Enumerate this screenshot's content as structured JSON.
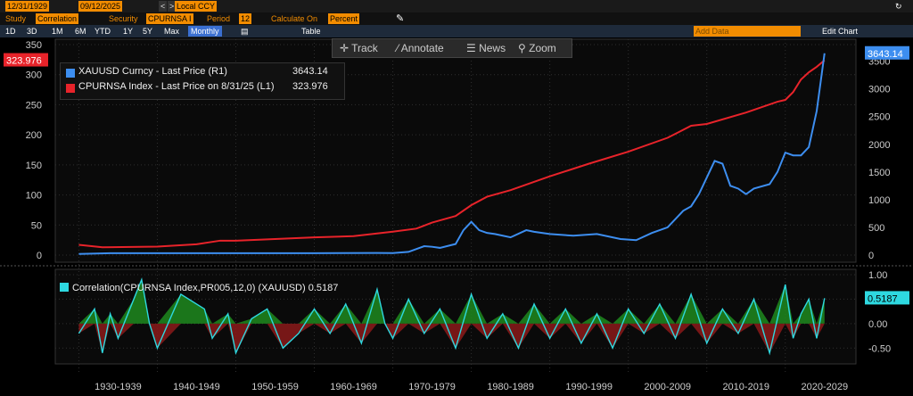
{
  "toolbar1": {
    "start_date": "12/31/1929",
    "end_date": "09/12/2025",
    "currency": "Local CCY"
  },
  "toolbar2": {
    "study_label": "Study",
    "study_value": "Correlation",
    "security_label": "Security",
    "security_value": "CPURNSA I",
    "period_label": "Period",
    "period_value": "12",
    "calc_label": "Calculate On",
    "calc_value": "Percent"
  },
  "toolbar3": {
    "ranges": [
      "1D",
      "3D",
      "1M",
      "6M",
      "YTD",
      "1Y",
      "5Y",
      "Max"
    ],
    "frequency": "Monthly",
    "table_label": "Table",
    "add_data_placeholder": "Add Data",
    "edit_chart": "Edit Chart"
  },
  "chart_toolbar": {
    "track": "Track",
    "annotate": "Annotate",
    "news": "News",
    "zoom": "Zoom"
  },
  "chart_data": [
    {
      "type": "line",
      "series": [
        {
          "name": "XAUUSD Curncy - Last Price (R1)",
          "axis": "right",
          "color": "#3d8ef0",
          "last_value": "3643.14",
          "x": [
            1930,
            1934,
            1940,
            1950,
            1960,
            1968,
            1970,
            1972,
            1974,
            1975,
            1976,
            1978,
            1979,
            1980,
            1981,
            1982,
            1983,
            1985,
            1987,
            1988,
            1990,
            1993,
            1996,
            1999,
            2001,
            2003,
            2005,
            2007,
            2008,
            2009,
            2010,
            2011,
            2012,
            2013,
            2014,
            2015,
            2016,
            2018,
            2019,
            2020,
            2021,
            2022,
            2023,
            2024,
            2025
          ],
          "values": [
            20.7,
            35,
            35,
            35,
            35,
            39,
            36,
            58,
            160,
            150,
            130,
            200,
            450,
            600,
            450,
            400,
            380,
            320,
            450,
            420,
            380,
            350,
            380,
            290,
            270,
            400,
            500,
            800,
            880,
            1100,
            1400,
            1700,
            1650,
            1250,
            1200,
            1100,
            1200,
            1280,
            1500,
            1850,
            1800,
            1800,
            1950,
            2600,
            3643
          ]
        },
        {
          "name": "CPURNSA Index - Last Price on 8/31/25 (L1)",
          "axis": "left",
          "color": "#e8232a",
          "last_value": "323.976",
          "x": [
            1930,
            1933,
            1940,
            1945,
            1948,
            1950,
            1960,
            1965,
            1970,
            1973,
            1975,
            1978,
            1980,
            1982,
            1985,
            1990,
            1995,
            2000,
            2005,
            2008,
            2010,
            2015,
            2019,
            2020,
            2021,
            2022,
            2023,
            2024,
            2025
          ],
          "values": [
            17,
            13,
            14,
            18,
            24,
            24,
            29.5,
            31.5,
            39,
            44,
            54,
            65,
            83,
            97,
            108,
            131,
            152,
            172,
            195,
            215,
            218,
            237,
            255,
            258,
            271,
            292,
            304,
            313,
            323.976
          ]
        }
      ],
      "y_left": {
        "ylim": [
          0,
          350
        ],
        "ticks": [
          0,
          50,
          100,
          150,
          200,
          250,
          300,
          350
        ]
      },
      "y_right": {
        "ylim": [
          0,
          3800
        ],
        "ticks": [
          0,
          500,
          1000,
          1500,
          2000,
          2500,
          3000,
          3500
        ]
      },
      "x_range": [
        1927,
        2029
      ],
      "grid": true,
      "legend_position": "top-left"
    },
    {
      "type": "area",
      "series": [
        {
          "name": "Correlation(CPURNSA Index,PR005,12,0) (XAUUSD)",
          "color": "#2ed8e0",
          "last_value": "0.5187",
          "x": [
            1930,
            1932,
            1933,
            1934,
            1935,
            1937,
            1938,
            1939,
            1940,
            1943,
            1946,
            1947,
            1949,
            1950,
            1952,
            1954,
            1956,
            1958,
            1960,
            1962,
            1964,
            1966,
            1968,
            1969,
            1970,
            1972,
            1974,
            1976,
            1978,
            1980,
            1982,
            1984,
            1986,
            1988,
            1990,
            1992,
            1994,
            1996,
            1998,
            2000,
            2002,
            2004,
            2006,
            2008,
            2010,
            2012,
            2014,
            2016,
            2018,
            2020,
            2021,
            2022,
            2023,
            2024,
            2025
          ],
          "values": [
            -0.2,
            0.3,
            -0.6,
            0.2,
            -0.3,
            0.5,
            0.9,
            0.0,
            -0.5,
            0.6,
            0.3,
            -0.3,
            0.2,
            -0.6,
            0.1,
            0.3,
            -0.5,
            -0.2,
            0.3,
            -0.2,
            0.4,
            -0.4,
            0.7,
            0.0,
            -0.3,
            0.5,
            -0.2,
            0.3,
            -0.5,
            0.6,
            -0.3,
            0.2,
            -0.5,
            0.4,
            -0.3,
            0.3,
            -0.4,
            0.2,
            -0.5,
            0.3,
            -0.2,
            0.4,
            -0.3,
            0.6,
            -0.4,
            0.3,
            -0.2,
            0.5,
            -0.6,
            0.8,
            -0.3,
            0.2,
            0.5,
            -0.3,
            0.5187
          ]
        }
      ],
      "ylim": [
        -0.75,
        1.0
      ],
      "ticks": [
        "1.00",
        "0.50",
        "0.00",
        "-0.50"
      ],
      "tick_values": [
        1.0,
        0.5,
        0.0,
        -0.5
      ]
    }
  ],
  "decade_labels": [
    "1930-1939",
    "1940-1949",
    "1950-1959",
    "1960-1969",
    "1970-1979",
    "1980-1989",
    "1990-1999",
    "2000-2009",
    "2010-2019",
    "2020-2029"
  ],
  "colors": {
    "bg": "#000000",
    "amber": "#f28c00",
    "grid": "#2f2f2f",
    "pos_fill": "#1e8a1e",
    "neg_fill": "#8b1a1a"
  }
}
